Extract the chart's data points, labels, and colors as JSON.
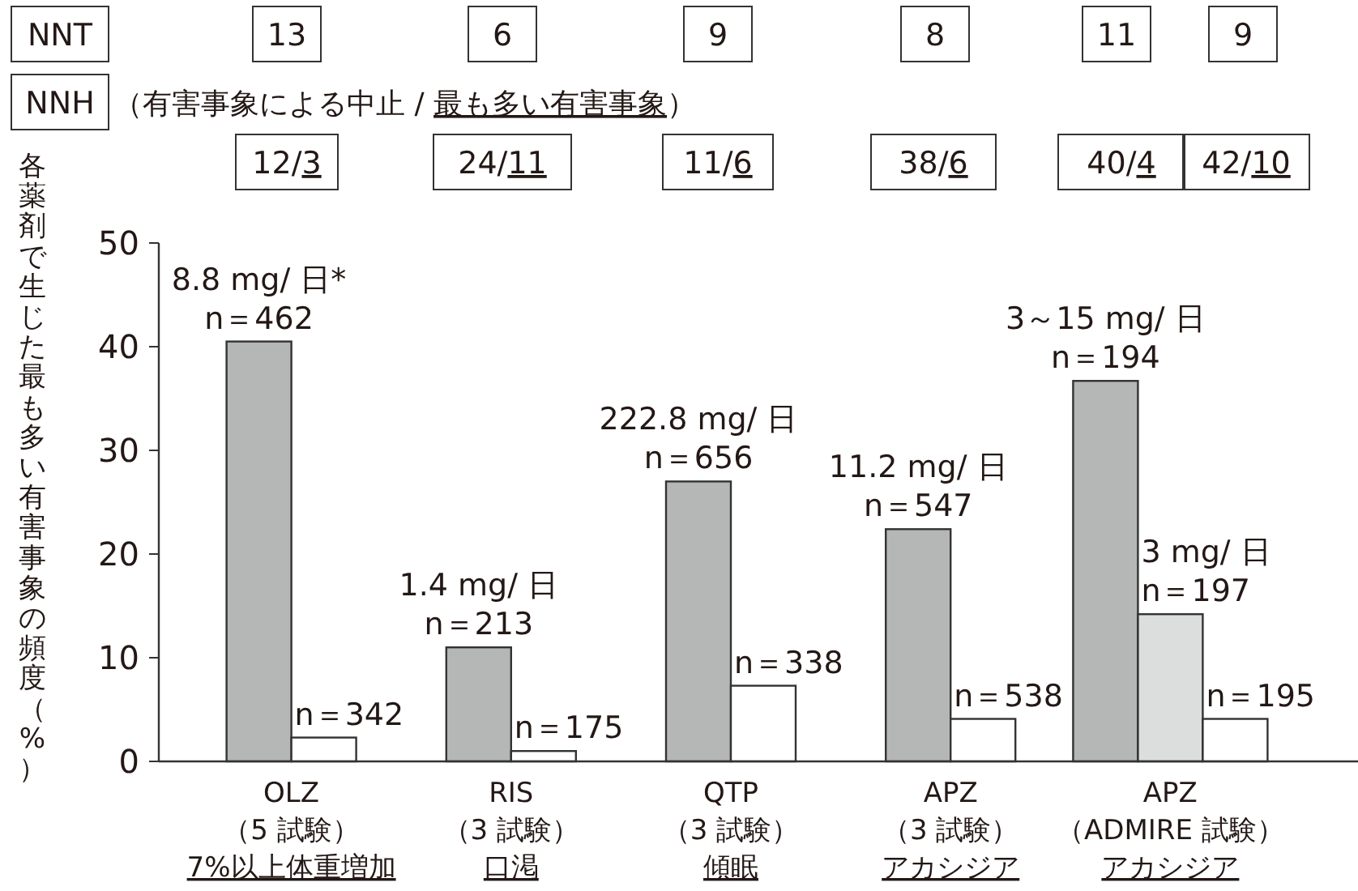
{
  "chart_data": {
    "type": "bar",
    "ylabel": "各薬剤で生じた最も多い有害事象の頻度（%）",
    "categories": [
      "OLZ\n（5 試験）7%以上体重増加",
      "RIS\n（3 試験）口渇",
      "QTP\n（3 試験）傾眠",
      "APZ\n（3 試験）アカシジア",
      "APZ\n（ADMIRE 試験）アカシジア"
    ],
    "series": [
      {
        "color": "#b5b6b6",
        "values": [
          40.5,
          11.0,
          27.0,
          22.4,
          36.7
        ]
      },
      {
        "color": "#dcdddd",
        "values": [
          null,
          null,
          null,
          null,
          14.2
        ]
      },
      {
        "color": "#ffffff",
        "values": [
          2.3,
          1.0,
          7.3,
          4.1,
          4.1
        ]
      }
    ],
    "ylim": [
      0,
      50
    ],
    "yticks": [
      0,
      10,
      20,
      30,
      40,
      50
    ],
    "grid": false,
    "annotations": [
      "NNT",
      "13",
      "6",
      "9",
      "8",
      "11",
      "9",
      "NNH",
      "（有害事象による中止 / 最も多い有害事象）",
      "12/3",
      "24/11",
      "11/6",
      "38/6",
      "40/4",
      "42/10",
      "3～15 mg/ 日\nn＝194",
      "n＝195",
      {
        "text": "8.8 mg/ 日*\nn＝462",
        "x": "OLZ\n（5 試験）7%以上体重増加",
        "y": 40.5
      },
      {
        "text": "n＝342",
        "x": "OLZ\n（5 試験）7%以上体重増加",
        "y": 2.3
      },
      {
        "text": "1.4 mg/ 日\nn＝213",
        "x": "RIS\n（3 試験）口渇",
        "y": 11.0
      },
      {
        "text": "n＝175",
        "x": "RIS\n（3 試験）口渇",
        "y": 1.0
      },
      {
        "text": "222.8 mg/ 日\nn＝656",
        "x": "QTP\n（3 試験）傾眠",
        "y": 27.0
      },
      {
        "text": "n＝338",
        "x": "QTP\n（3 試験）傾眠",
        "y": 7.3
      },
      {
        "text": "11.2 mg/ 日\nn＝547",
        "x": "APZ\n（3 試験）アカシジア",
        "y": 22.4
      },
      {
        "text": "n＝538",
        "x": "APZ\n（3 試験）アカシジア",
        "y": 4.1
      },
      {
        "text": "3 mg/ 日\nn＝197",
        "x": "APZ\n（ADMIRE 試験）アカシジア",
        "y": 14.2
      }
    ]
  }
}
